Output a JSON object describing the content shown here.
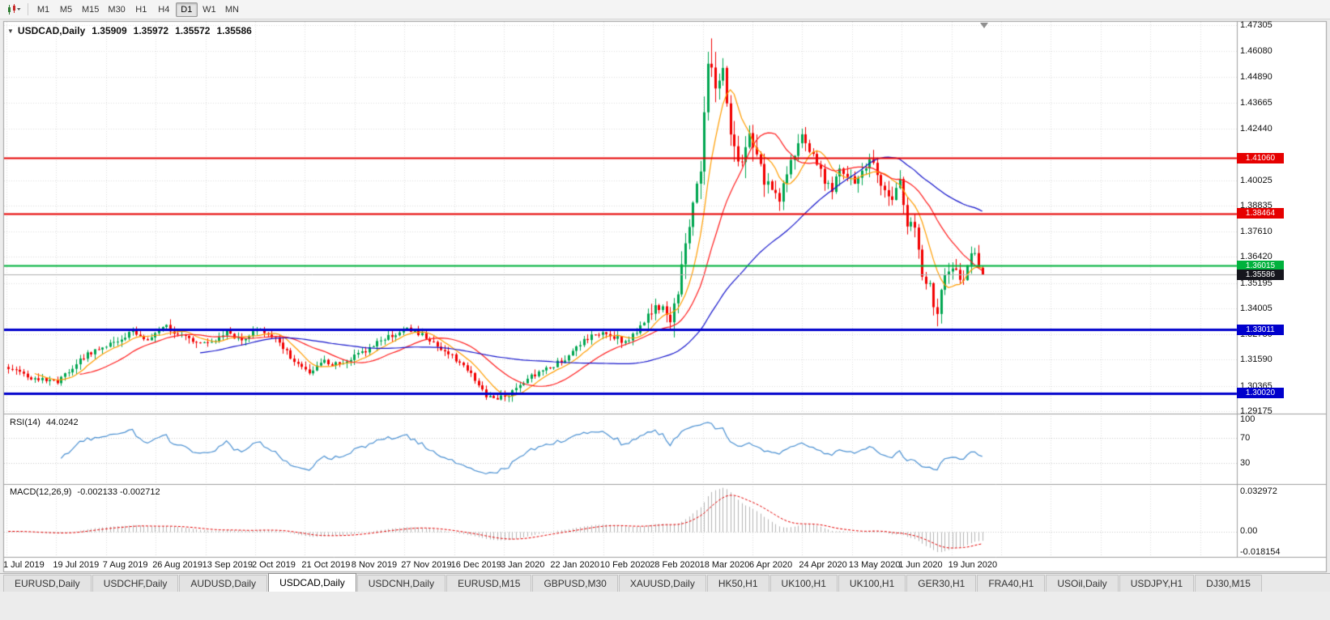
{
  "toolbar": {
    "timeframes": [
      {
        "label": "M1",
        "active": false
      },
      {
        "label": "M5",
        "active": false
      },
      {
        "label": "M15",
        "active": false
      },
      {
        "label": "M30",
        "active": false
      },
      {
        "label": "H1",
        "active": false
      },
      {
        "label": "H4",
        "active": false
      },
      {
        "label": "D1",
        "active": true
      },
      {
        "label": "W1",
        "active": false
      },
      {
        "label": "MN",
        "active": false
      }
    ]
  },
  "chart": {
    "title": {
      "symbol": "USDCAD,Daily",
      "open": "1.35909",
      "high": "1.35972",
      "low": "1.35572",
      "close": "1.35586"
    },
    "price_axis_labels": [
      "1.47305",
      "1.46080",
      "1.44890",
      "1.43665",
      "1.42440",
      "1.40025",
      "1.38835",
      "1.37610",
      "1.36420",
      "1.35195",
      "1.34005",
      "1.32780",
      "1.31590",
      "1.30365",
      "1.29175"
    ],
    "hlines": [
      {
        "label": "1.41060",
        "value": 1.4106,
        "color": "#e60000",
        "width": 2
      },
      {
        "label": "1.38464",
        "value": 1.38464,
        "color": "#e60000",
        "width": 2
      },
      {
        "label": "1.36015",
        "value": 1.36015,
        "color": "#00b23d",
        "width": 2
      },
      {
        "label": "1.33011",
        "value": 1.33011,
        "color": "#0000cc",
        "width": 3
      },
      {
        "label": "1.30020",
        "value": 1.3002,
        "color": "#0000cc",
        "width": 3
      }
    ],
    "current_price": {
      "label": "1.35586",
      "value": 1.35586,
      "badge_color": "#16161d",
      "line_color": "#b0b0b0"
    },
    "date_labels": [
      "1 Jul 2019",
      "19 Jul 2019",
      "7 Aug 2019",
      "26 Aug 2019",
      "13 Sep 2019",
      "2 Oct 2019",
      "21 Oct 2019",
      "8 Nov 2019",
      "27 Nov 2019",
      "16 Dec 2019",
      "3 Jan 2020",
      "22 Jan 2020",
      "10 Feb 2020",
      "28 Feb 2020",
      "18 Mar 2020",
      "6 Apr 2020",
      "24 Apr 2020",
      "13 May 2020",
      "1 Jun 2020",
      "19 Jun 2020"
    ]
  },
  "rsi": {
    "name": "RSI(14)",
    "value": "44.0242",
    "axis_labels": [
      "100",
      "70",
      "30"
    ],
    "levels": [
      70,
      30
    ],
    "line_color": "#4a90d2"
  },
  "macd": {
    "name": "MACD(12,26,9)",
    "values": "-0.002133 -0.002712",
    "axis_labels": [
      "0.032972",
      "0.00",
      "-0.018154"
    ],
    "histogram_color": "#b3b3b3",
    "signal_color": "#e60000"
  },
  "tabs": [
    {
      "label": "EURUSD,Daily",
      "active": false
    },
    {
      "label": "USDCHF,Daily",
      "active": false
    },
    {
      "label": "AUDUSD,Daily",
      "active": false
    },
    {
      "label": "USDCAD,Daily",
      "active": true
    },
    {
      "label": "USDCNH,Daily",
      "active": false
    },
    {
      "label": "EURUSD,M15",
      "active": false
    },
    {
      "label": "GBPUSD,M30",
      "active": false
    },
    {
      "label": "XAUUSD,Daily",
      "active": false
    },
    {
      "label": "HK50,H1",
      "active": false
    },
    {
      "label": "UK100,H1",
      "active": false
    },
    {
      "label": "UK100,H1",
      "active": false
    },
    {
      "label": "GER30,H1",
      "active": false
    },
    {
      "label": "FRA40,H1",
      "active": false
    },
    {
      "label": "USOil,Daily",
      "active": false
    },
    {
      "label": "USDJPY,H1",
      "active": false
    },
    {
      "label": "DJ30,M15",
      "active": false
    }
  ],
  "chart_data": {
    "type": "candlestick",
    "symbol": "USDCAD",
    "timeframe": "Daily",
    "title": "USDCAD,Daily",
    "ohlc_current": {
      "open": 1.35909,
      "high": 1.35972,
      "low": 1.35572,
      "close": 1.35586
    },
    "x_range": [
      "1 Jul 2019",
      "30 Jun 2020"
    ],
    "y_range": {
      "top": 1.47305,
      "bottom": 1.29175
    },
    "candle_count": 260,
    "up_color": "#00a651",
    "down_color": "#f20000",
    "close_anchors": [
      [
        0,
        1.3125
      ],
      [
        6,
        1.3075
      ],
      [
        13,
        1.3058
      ],
      [
        20,
        1.3175
      ],
      [
        27,
        1.3235
      ],
      [
        33,
        1.329
      ],
      [
        37,
        1.3252
      ],
      [
        41,
        1.3322
      ],
      [
        46,
        1.3268
      ],
      [
        53,
        1.3228
      ],
      [
        58,
        1.3288
      ],
      [
        62,
        1.3252
      ],
      [
        66,
        1.3312
      ],
      [
        71,
        1.3262
      ],
      [
        75,
        1.3172
      ],
      [
        80,
        1.3092
      ],
      [
        84,
        1.3152
      ],
      [
        88,
        1.3132
      ],
      [
        93,
        1.3182
      ],
      [
        99,
        1.3252
      ],
      [
        106,
        1.3302
      ],
      [
        110,
        1.3275
      ],
      [
        114,
        1.3228
      ],
      [
        119,
        1.3162
      ],
      [
        123,
        1.3088
      ],
      [
        127,
        1.2985
      ],
      [
        130,
        1.2972
      ],
      [
        133,
        1.2995
      ],
      [
        137,
        1.3055
      ],
      [
        141,
        1.3105
      ],
      [
        145,
        1.3132
      ],
      [
        149,
        1.3175
      ],
      [
        153,
        1.3245
      ],
      [
        158,
        1.3298
      ],
      [
        161,
        1.3268
      ],
      [
        164,
        1.3238
      ],
      [
        167,
        1.3292
      ],
      [
        170,
        1.3362
      ],
      [
        172,
        1.3428
      ],
      [
        174,
        1.3392
      ],
      [
        176,
        1.3352
      ],
      [
        178,
        1.3502
      ],
      [
        180,
        1.3692
      ],
      [
        182,
        1.3932
      ],
      [
        184,
        1.4052
      ],
      [
        186,
        1.4528
      ],
      [
        187,
        1.4562
      ],
      [
        188,
        1.4432
      ],
      [
        190,
        1.4498
      ],
      [
        192,
        1.4252
      ],
      [
        194,
        1.4062
      ],
      [
        197,
        1.4188
      ],
      [
        199,
        1.4098
      ],
      [
        201,
        1.4008
      ],
      [
        203,
        1.3952
      ],
      [
        205,
        1.3922
      ],
      [
        207,
        1.4038
      ],
      [
        209,
        1.4128
      ],
      [
        211,
        1.4198
      ],
      [
        213,
        1.4132
      ],
      [
        215,
        1.4088
      ],
      [
        217,
        1.4002
      ],
      [
        219,
        1.3952
      ],
      [
        221,
        1.4058
      ],
      [
        223,
        1.4028
      ],
      [
        225,
        1.3982
      ],
      [
        227,
        1.4038
      ],
      [
        229,
        1.4108
      ],
      [
        231,
        1.4028
      ],
      [
        233,
        1.3952
      ],
      [
        235,
        1.3928
      ],
      [
        237,
        1.3988
      ],
      [
        239,
        1.3802
      ],
      [
        241,
        1.3772
      ],
      [
        243,
        1.3562
      ],
      [
        245,
        1.3498
      ],
      [
        246,
        1.3422
      ],
      [
        247,
        1.3378
      ],
      [
        248,
        1.3478
      ],
      [
        249,
        1.3558
      ],
      [
        250,
        1.3592
      ],
      [
        252,
        1.3562
      ],
      [
        254,
        1.3542
      ],
      [
        255,
        1.3608
      ],
      [
        256,
        1.3658
      ],
      [
        257,
        1.3678
      ],
      [
        258,
        1.3642
      ],
      [
        259,
        1.35586
      ]
    ],
    "special": {
      "peak_index": 187,
      "peak_high": 1.4668,
      "june_low_index": 247,
      "june_low": 1.3316
    },
    "moving_averages": [
      {
        "period": 8,
        "color": "#ff9d00"
      },
      {
        "period": 20,
        "color": "#ff1e1e"
      },
      {
        "period": 52,
        "color": "#1414cc"
      }
    ],
    "horizontal_levels": [
      1.4106,
      1.38464,
      1.36015,
      1.33011,
      1.3002
    ],
    "indicators": [
      {
        "name": "RSI",
        "period": 14,
        "current": 44.0242
      },
      {
        "name": "MACD",
        "fast": 12,
        "slow": 26,
        "signal": 9,
        "current_macd": -0.002133,
        "current_signal": -0.002712
      }
    ]
  }
}
